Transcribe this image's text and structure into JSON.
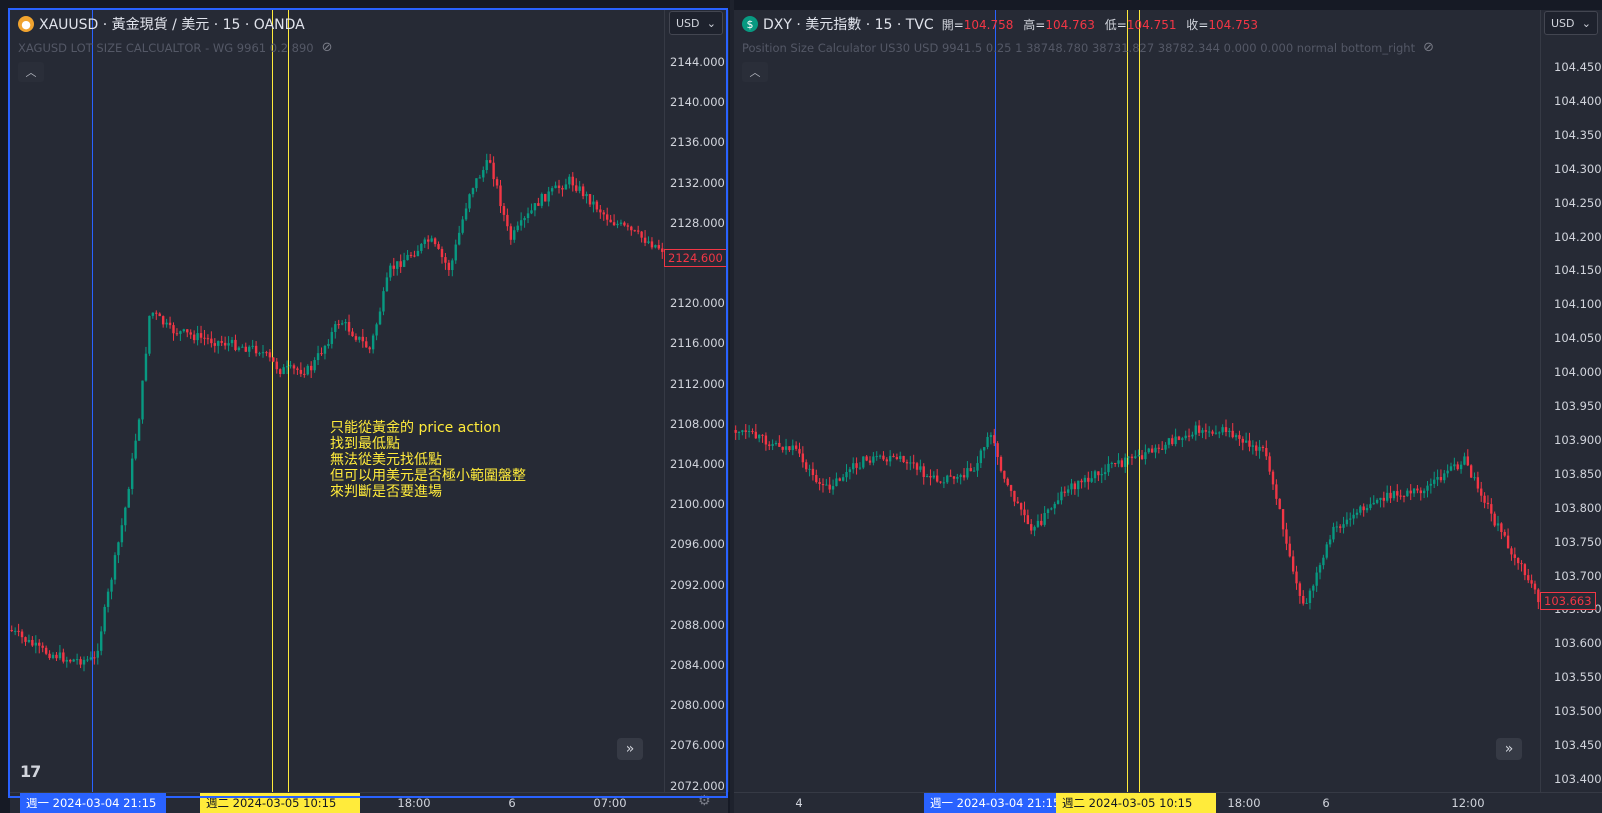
{
  "left": {
    "symbol_icon": "coin-icon",
    "title": "XAUUSD · 黃金現貨 / 美元 · 15 · OANDA",
    "indicator": "XAGUSD LOT SIZE CALCUALTOR - WG 9961 0.2 890",
    "currency": "USD",
    "current_price": "2124.600",
    "price_ticks": [
      "2144.000",
      "2140.000",
      "2136.000",
      "2132.000",
      "2128.000",
      "2124.000",
      "2120.000",
      "2116.000",
      "2112.000",
      "2108.000",
      "2104.000",
      "2100.000",
      "2096.000",
      "2092.000",
      "2088.000",
      "2084.000",
      "2080.000",
      "2076.000",
      "2072.000"
    ],
    "time_marker_1": "週一 2024-03-04   21:15",
    "time_marker_2": "週二 2024-03-05   10:15",
    "time_labels": [
      "18:00",
      "6",
      "07:00"
    ],
    "annotation": [
      "只能從黃金的 price action",
      "找到最低點",
      "無法從美元找低點",
      "但可以用美元是否極小範圍盤整",
      "來判斷是否要進場"
    ],
    "colors": {
      "up": "#089981",
      "down": "#f23645",
      "blue_line": "#2962ff",
      "yellow_line": "#ffeb3b"
    }
  },
  "right": {
    "symbol_icon": "dollar-icon",
    "title": "DXY · 美元指數 · 15 · TVC",
    "ohlc": {
      "open_label": "開",
      "open": "104.758",
      "high_label": "高",
      "high": "104.763",
      "low_label": "低",
      "low": "104.751",
      "close_label": "收",
      "close": "104.753"
    },
    "indicator": "Position Size Calculator US30 USD 9941.5 0.25 1 38748.780 38731.827 38782.344 0.000 0.000 normal bottom_right",
    "currency": "USD",
    "current_price": "103.663",
    "price_ticks": [
      "104.450",
      "104.400",
      "104.350",
      "104.300",
      "104.250",
      "104.200",
      "104.150",
      "104.100",
      "104.050",
      "104.000",
      "103.950",
      "103.900",
      "103.850",
      "103.800",
      "103.750",
      "103.700",
      "103.650",
      "103.600",
      "103.550",
      "103.500",
      "103.450",
      "103.400"
    ],
    "time_marker_1": "週一 2024-03-04   21:15",
    "time_marker_2": "週二 2024-03-05   10:15",
    "time_labels": [
      "4",
      "18:00",
      "6",
      "12:00"
    ]
  },
  "logo": "17"
}
